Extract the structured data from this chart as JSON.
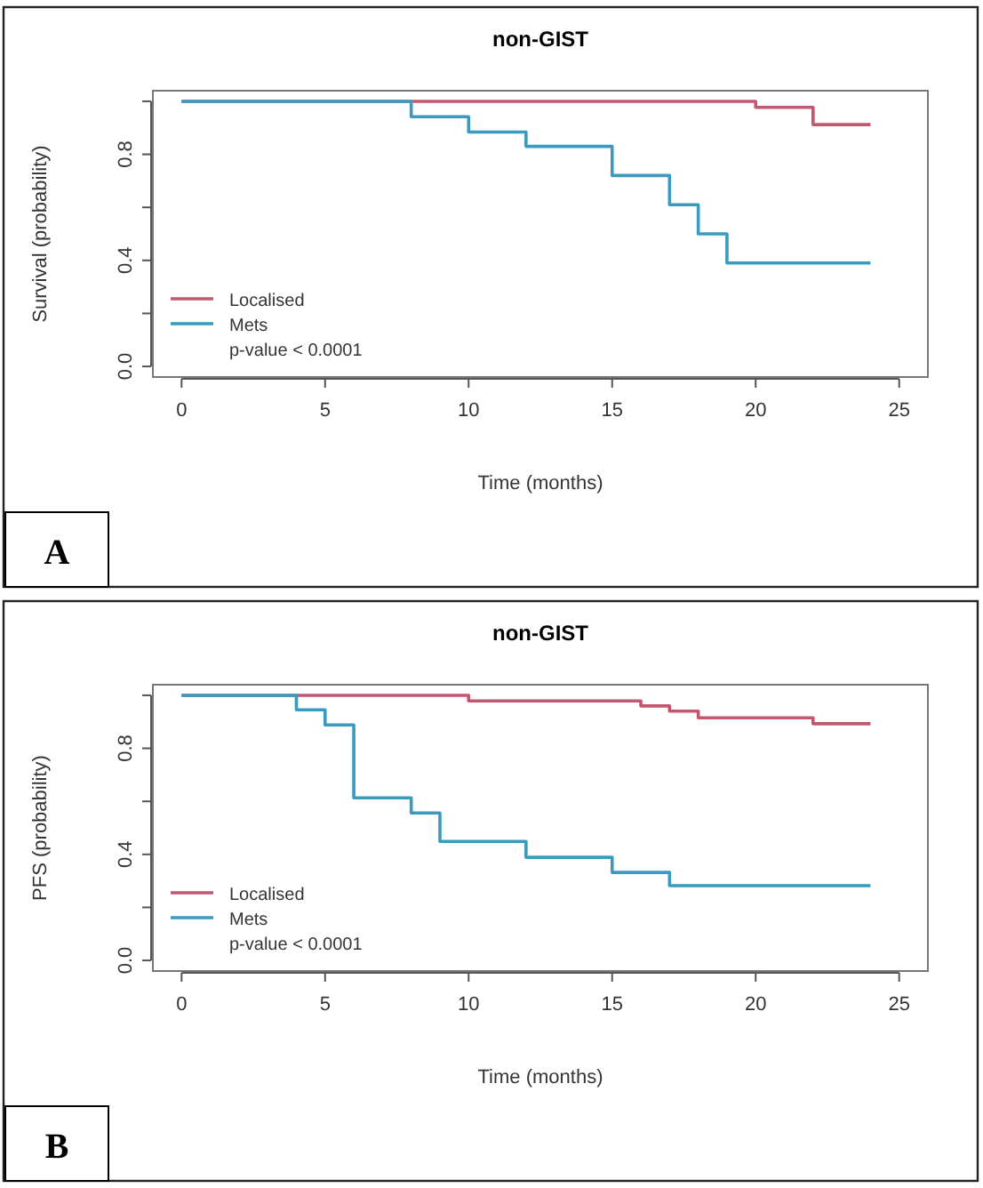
{
  "chart_data": [
    {
      "type": "step",
      "title": "non-GIST",
      "xlabel": "Time (months)",
      "ylabel": "Survival (probability)",
      "xlim": [
        -1,
        26
      ],
      "ylim": [
        -0.04,
        1.04
      ],
      "xticks": [
        0,
        5,
        10,
        15,
        20,
        25
      ],
      "yticks": [
        {
          "value": 0,
          "label": "0.0"
        },
        {
          "value": 0.2,
          "label": null
        },
        {
          "value": 0.4,
          "label": "0.4"
        },
        {
          "value": 0.6,
          "label": null
        },
        {
          "value": 0.8,
          "label": "0.8"
        },
        {
          "value": 1,
          "label": null
        }
      ],
      "legend": "bottom left",
      "grid": false,
      "annotations": [
        "p-value < 0.0001",
        "A"
      ],
      "series": [
        {
          "name": "Localised",
          "color": "#c4566f",
          "x": [
            0,
            20,
            22,
            24
          ],
          "values": [
            1,
            0.977,
            0.912,
            0.912
          ]
        },
        {
          "name": "Mets",
          "color": "#3a9bbf",
          "x": [
            0,
            8,
            10,
            12,
            15,
            17,
            18,
            19,
            24
          ],
          "values": [
            1,
            0.942,
            0.884,
            0.83,
            0.72,
            0.61,
            0.5,
            0.39,
            0.39
          ]
        }
      ]
    },
    {
      "type": "step",
      "title": "non-GIST",
      "xlabel": "Time (months)",
      "ylabel": "PFS (probability)",
      "xlim": [
        -1,
        26
      ],
      "ylim": [
        -0.04,
        1.04
      ],
      "xticks": [
        0,
        5,
        10,
        15,
        20,
        25
      ],
      "yticks": [
        {
          "value": 0,
          "label": "0.0"
        },
        {
          "value": 0.2,
          "label": null
        },
        {
          "value": 0.4,
          "label": "0.4"
        },
        {
          "value": 0.6,
          "label": null
        },
        {
          "value": 0.8,
          "label": "0.8"
        },
        {
          "value": 1,
          "label": null
        }
      ],
      "legend": "bottom left",
      "grid": false,
      "annotations": [
        "p-value < 0.0001",
        "B"
      ],
      "series": [
        {
          "name": "Localised",
          "color": "#c4566f",
          "x": [
            0,
            10,
            16,
            17,
            18,
            22,
            24
          ],
          "values": [
            1,
            0.979,
            0.96,
            0.94,
            0.915,
            0.893,
            0.893
          ]
        },
        {
          "name": "Mets",
          "color": "#3a9bbf",
          "x": [
            0,
            4,
            5,
            6,
            8,
            9,
            12,
            15,
            17,
            24
          ],
          "values": [
            1,
            0.945,
            0.888,
            0.613,
            0.556,
            0.449,
            0.389,
            0.332,
            0.282,
            0.282
          ]
        }
      ]
    }
  ]
}
